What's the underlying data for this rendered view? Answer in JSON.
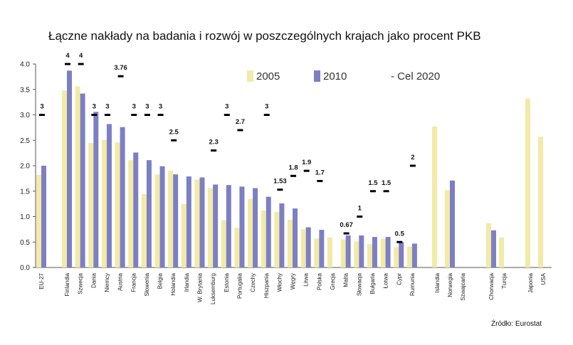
{
  "chart_data": {
    "type": "bar",
    "title": "Łączne nakłady na badania i rozwój w poszczególnych krajach jako procent PKB",
    "source": "Źródło: Eurostat",
    "ylim": [
      0,
      4.0
    ],
    "yticks": [
      "0.0",
      "0.5",
      "1.0",
      "1.5",
      "2.0",
      "2.5",
      "3.0",
      "3.5",
      "4.0"
    ],
    "grid": false,
    "legend_position": "top-right",
    "colors": {
      "2005": "#f2eaa6",
      "2010": "#7d7fc4",
      "target": "#000000"
    },
    "categories": [
      "EU-27",
      "Finlandia",
      "Szwecja",
      "Dania",
      "Niemcy",
      "Austria",
      "Francja",
      "Słowenia",
      "Belgia",
      "Holandia",
      "Irlandia",
      "W. Brytania",
      "Luksemburg",
      "Estonia",
      "Portugalia",
      "Czechy",
      "Hiszpania",
      "Włochy",
      "Węgry",
      "Litwa",
      "Polska",
      "Grecja",
      "Malta",
      "Słowacja",
      "Bułgaria",
      "Łotwa",
      "Cypr",
      "Rumunia",
      "Islandia",
      "Norwegia",
      "Szwajcaria",
      "Chorwacja",
      "Turcja",
      "Japonia",
      "USA"
    ],
    "series": [
      {
        "name": "2005",
        "values": [
          1.82,
          3.48,
          3.56,
          2.45,
          2.51,
          2.46,
          2.11,
          1.44,
          1.83,
          1.9,
          1.25,
          1.73,
          1.56,
          0.93,
          0.78,
          1.35,
          1.12,
          1.09,
          0.94,
          0.75,
          0.57,
          0.59,
          0.55,
          0.51,
          0.46,
          0.56,
          0.4,
          0.41,
          2.77,
          1.52,
          null,
          0.87,
          0.59,
          3.32,
          2.57
        ]
      },
      {
        "name": "2010",
        "values": [
          2.0,
          3.87,
          3.42,
          3.06,
          2.82,
          2.76,
          2.26,
          2.11,
          1.99,
          1.83,
          1.79,
          1.77,
          1.63,
          1.62,
          1.59,
          1.56,
          1.39,
          1.26,
          1.16,
          0.79,
          0.74,
          null,
          0.63,
          0.63,
          0.6,
          0.6,
          0.5,
          0.47,
          null,
          1.71,
          null,
          0.73,
          null,
          null,
          null
        ]
      }
    ],
    "targets": {
      "name": "Cel 2020",
      "values": [
        3,
        4,
        4,
        3,
        3,
        3.76,
        3,
        3,
        3,
        2.5,
        null,
        null,
        2.3,
        3,
        2.7,
        null,
        3,
        1.53,
        1.8,
        1.9,
        1.7,
        null,
        0.67,
        1,
        1.5,
        1.5,
        0.5,
        2,
        null,
        null,
        null,
        null,
        null,
        null,
        null
      ],
      "labels": [
        "3",
        "4",
        "4",
        "3",
        "3",
        "3.76",
        "3",
        "3",
        "3",
        "2.5",
        "",
        "",
        "2.3",
        "3",
        "2.7",
        "",
        "3",
        "1.53",
        "1.8",
        "1.9",
        "1.7",
        "",
        "0.67",
        "1",
        "1.5",
        "1.5",
        "0.5",
        "2",
        "",
        "",
        "",
        "",
        "",
        "",
        ""
      ]
    },
    "legend": [
      "2005",
      "2010",
      "- Cel 2020"
    ]
  }
}
